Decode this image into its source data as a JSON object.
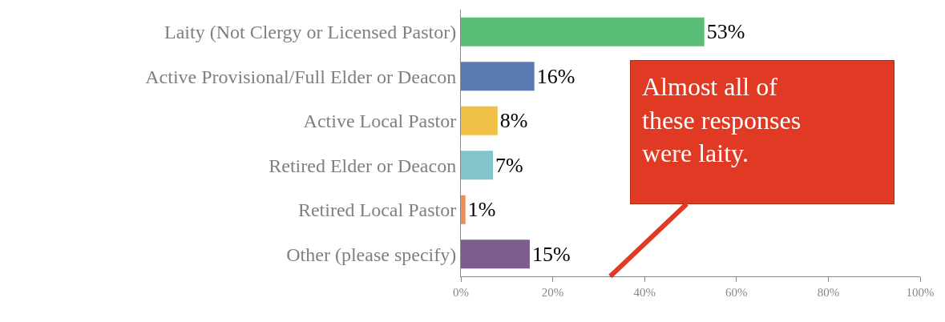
{
  "chart_data": {
    "type": "bar",
    "orientation": "horizontal",
    "categories": [
      "Laity (Not Clergy or Licensed Pastor)",
      "Active Provisional/Full Elder or Deacon",
      "Active Local Pastor",
      "Retired Elder or Deacon",
      "Retired Local Pastor",
      "Other (please specify)"
    ],
    "values": [
      53,
      16,
      8,
      7,
      1,
      15
    ],
    "value_labels": [
      "53%",
      "16%",
      "8%",
      "7%",
      "1%",
      "15%"
    ],
    "colors": [
      "#59bd77",
      "#5a7ab3",
      "#f0bf45",
      "#82c6cb",
      "#f08c5a",
      "#7b5e8e"
    ],
    "xlim": [
      0,
      100
    ],
    "xticks": [
      {
        "value": 0,
        "label": "0%"
      },
      {
        "value": 20,
        "label": "20%"
      },
      {
        "value": 40,
        "label": "40%"
      },
      {
        "value": 60,
        "label": "60%"
      },
      {
        "value": 80,
        "label": "80%"
      },
      {
        "value": 100,
        "label": "100%"
      }
    ],
    "legend": false,
    "annotations": [
      "Almost all of\nthese responses\nwere laity."
    ]
  }
}
